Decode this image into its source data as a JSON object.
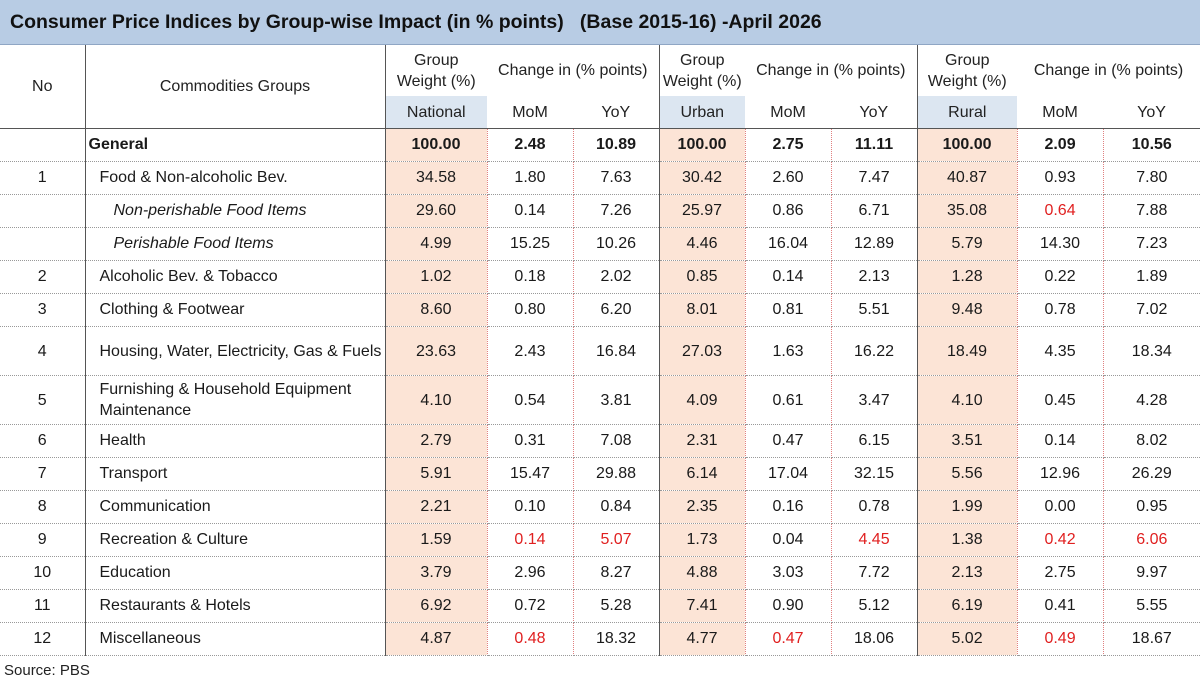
{
  "title": "Consumer Price Indices by Group-wise Impact (in % points)   (Base 2015-16) -April 2026",
  "headers": {
    "no": "No",
    "groups": "Commodities Groups",
    "group_weight": "Group Weight (%)",
    "change": "Change in (% points)",
    "national": "National",
    "urban": "Urban",
    "rural": "Rural",
    "mom": "MoM",
    "yoy": "YoY"
  },
  "general": {
    "label": "General",
    "values": [
      "100.00",
      "2.48",
      "10.89",
      "100.00",
      "2.75",
      "11.11",
      "100.00",
      "2.09",
      "10.56"
    ]
  },
  "rows": [
    {
      "no": "1",
      "name": "Food & Non-alcoholic Bev.",
      "values": [
        "34.58",
        "1.80",
        "7.63",
        "30.42",
        "2.60",
        "7.47",
        "40.87",
        "0.93",
        "7.80"
      ]
    },
    {
      "no": "",
      "name": "Non-perishable Food Items",
      "sub": true,
      "values": [
        "29.60",
        "0.14",
        "7.26",
        "25.97",
        "0.86",
        "6.71",
        "35.08",
        "0.64",
        "7.88"
      ],
      "red": [
        7
      ]
    },
    {
      "no": "",
      "name": "Perishable Food Items",
      "sub": true,
      "values": [
        "4.99",
        "15.25",
        "10.26",
        "4.46",
        "16.04",
        "12.89",
        "5.79",
        "14.30",
        "7.23"
      ]
    },
    {
      "no": "2",
      "name": "Alcoholic Bev. & Tobacco",
      "values": [
        "1.02",
        "0.18",
        "2.02",
        "0.85",
        "0.14",
        "2.13",
        "1.28",
        "0.22",
        "1.89"
      ]
    },
    {
      "no": "3",
      "name": "Clothing & Footwear",
      "values": [
        "8.60",
        "0.80",
        "6.20",
        "8.01",
        "0.81",
        "5.51",
        "9.48",
        "0.78",
        "7.02"
      ]
    },
    {
      "no": "4",
      "name": "Housing, Water, Electricity, Gas & Fuels",
      "tall": true,
      "values": [
        "23.63",
        "2.43",
        "16.84",
        "27.03",
        "1.63",
        "16.22",
        "18.49",
        "4.35",
        "18.34"
      ]
    },
    {
      "no": "5",
      "name": "Furnishing & Household Equipment Maintenance",
      "tall": true,
      "values": [
        "4.10",
        "0.54",
        "3.81",
        "4.09",
        "0.61",
        "3.47",
        "4.10",
        "0.45",
        "4.28"
      ]
    },
    {
      "no": "6",
      "name": "Health",
      "values": [
        "2.79",
        "0.31",
        "7.08",
        "2.31",
        "0.47",
        "6.15",
        "3.51",
        "0.14",
        "8.02"
      ]
    },
    {
      "no": "7",
      "name": "Transport",
      "values": [
        "5.91",
        "15.47",
        "29.88",
        "6.14",
        "17.04",
        "32.15",
        "5.56",
        "12.96",
        "26.29"
      ]
    },
    {
      "no": "8",
      "name": "Communication",
      "values": [
        "2.21",
        "0.10",
        "0.84",
        "2.35",
        "0.16",
        "0.78",
        "1.99",
        "0.00",
        "0.95"
      ]
    },
    {
      "no": "9",
      "name": "Recreation & Culture",
      "values": [
        "1.59",
        "0.14",
        "5.07",
        "1.73",
        "0.04",
        "4.45",
        "1.38",
        "0.42",
        "6.06"
      ],
      "red": [
        1,
        2,
        5,
        7,
        8
      ]
    },
    {
      "no": "10",
      "name": "Education",
      "values": [
        "3.79",
        "2.96",
        "8.27",
        "4.88",
        "3.03",
        "7.72",
        "2.13",
        "2.75",
        "9.97"
      ]
    },
    {
      "no": "11",
      "name": "Restaurants & Hotels",
      "values": [
        "6.92",
        "0.72",
        "5.28",
        "7.41",
        "0.90",
        "5.12",
        "6.19",
        "0.41",
        "5.55"
      ]
    },
    {
      "no": "12",
      "name": "Miscellaneous",
      "values": [
        "4.87",
        "0.48",
        "18.32",
        "4.77",
        "0.47",
        "18.06",
        "5.02",
        "0.49",
        "18.67"
      ],
      "red": [
        1,
        4,
        7
      ]
    }
  ],
  "source": "Source: PBS",
  "colors": {
    "header_bg": "#b8cce4",
    "weight_bg": "#fce4d6",
    "negative": "#e02020"
  }
}
